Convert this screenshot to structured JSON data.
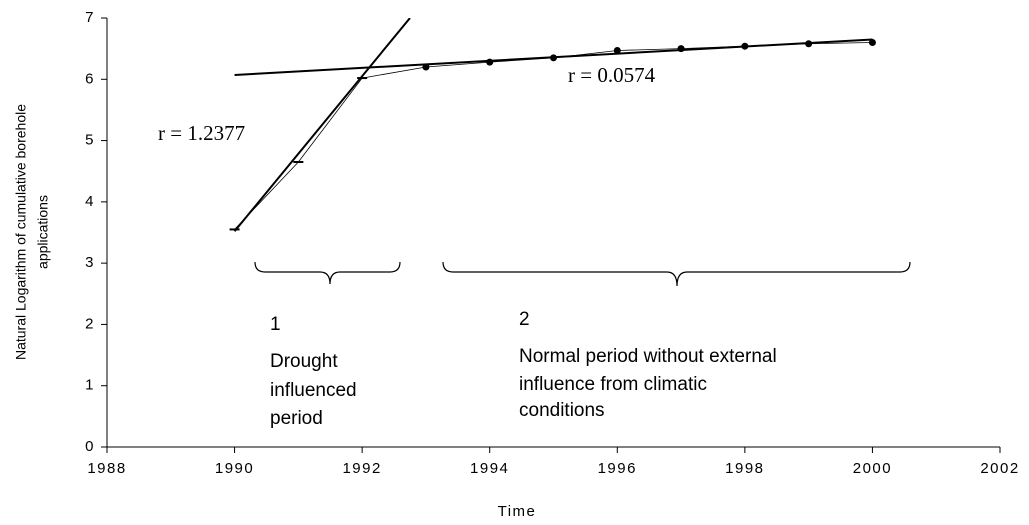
{
  "chart_data": {
    "type": "line",
    "x_label": "Time",
    "y_label_lines": [
      "Natural Logarithm of cumulative borehole",
      "applications"
    ],
    "x": [
      1990,
      1991,
      1992,
      1993,
      1994,
      1995,
      1996,
      1997,
      1998,
      1999,
      2000
    ],
    "values": [
      3.55,
      4.65,
      6.02,
      6.2,
      6.28,
      6.35,
      6.47,
      6.5,
      6.54,
      6.58,
      6.6
    ],
    "markers": [
      "dash",
      "dash",
      "dash",
      "circle",
      "circle",
      "circle",
      "circle",
      "circle",
      "circle",
      "circle",
      "circle"
    ],
    "color": "#000000",
    "trendlines": [
      {
        "x": [
          1990,
          1992.75
        ],
        "values": [
          3.52,
          7
        ]
      },
      {
        "x": [
          1990,
          2000
        ],
        "values": [
          6.07,
          6.65
        ]
      }
    ],
    "xlim": [
      1988,
      2002
    ],
    "xticks": [
      1988,
      1990,
      1992,
      1994,
      1996,
      1998,
      2000,
      2002
    ],
    "ylim": [
      0,
      7
    ],
    "yticks": [
      0,
      1,
      2,
      3,
      4,
      5,
      6,
      7
    ],
    "grid": false,
    "annotations": {
      "r1": "r = 1.2377",
      "r2": "r = 0.0574",
      "period1_number": "1",
      "period1_lines": [
        "Drought",
        "influenced",
        "period"
      ],
      "period2_number": "2",
      "period2_lines": [
        "Normal period without external",
        "influence from climatic",
        "conditions"
      ]
    }
  }
}
